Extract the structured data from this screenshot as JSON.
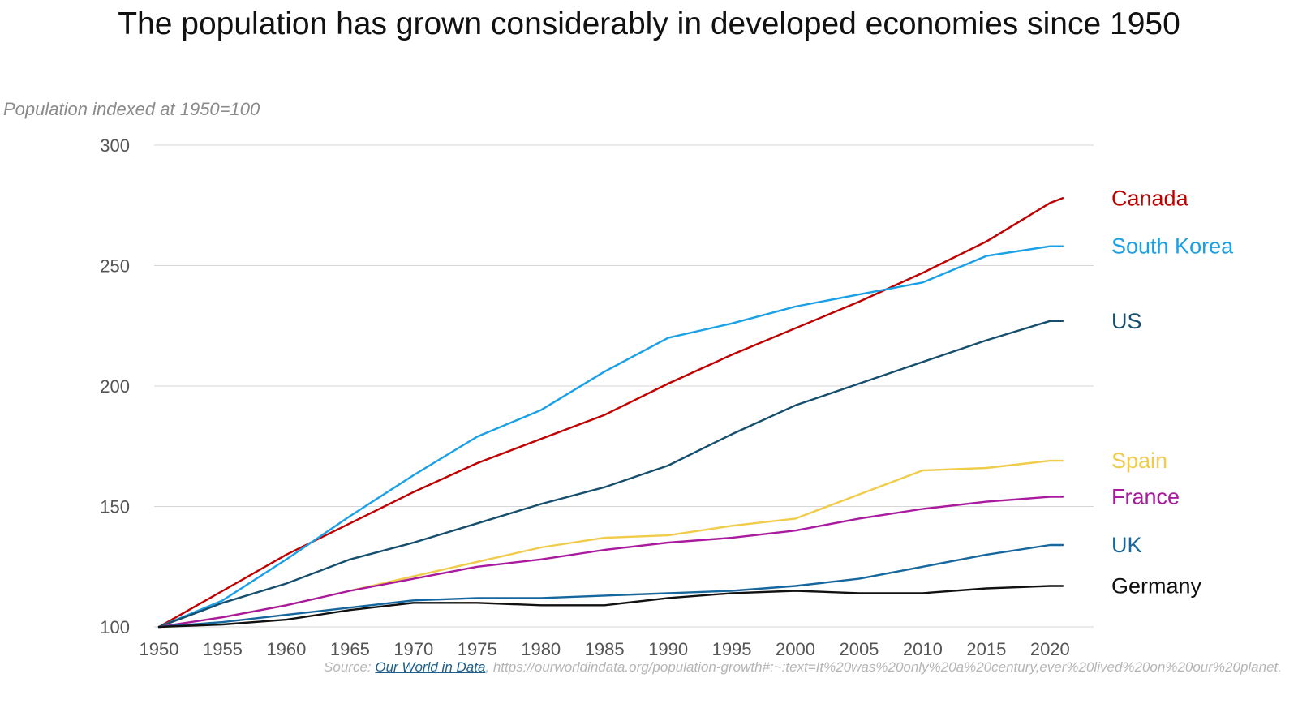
{
  "chart_data": {
    "type": "line",
    "title": "The population has grown considerably in developed economies since 1950",
    "ylabel": "Population indexed at 1950=100",
    "xlabel": "",
    "xlim": [
      1950,
      2021
    ],
    "ylim": [
      100,
      300
    ],
    "x_ticks": [
      "1950",
      "1955",
      "1960",
      "1965",
      "1970",
      "1975",
      "1980",
      "1985",
      "1990",
      "1995",
      "2000",
      "2005",
      "2010",
      "2015",
      "2020"
    ],
    "y_ticks": [
      "100",
      "150",
      "200",
      "250",
      "300"
    ],
    "grid": "horizontal",
    "legend": "inline labels at right end of lines",
    "series": [
      {
        "name": "Canada",
        "color": "#c00000",
        "points": [
          [
            1950,
            100
          ],
          [
            1955,
            115
          ],
          [
            1960,
            130
          ],
          [
            1965,
            143
          ],
          [
            1970,
            156
          ],
          [
            1975,
            168
          ],
          [
            1980,
            178
          ],
          [
            1985,
            188
          ],
          [
            1990,
            201
          ],
          [
            1995,
            213
          ],
          [
            2000,
            224
          ],
          [
            2005,
            235
          ],
          [
            2010,
            247
          ],
          [
            2015,
            260
          ],
          [
            2020,
            276
          ],
          [
            2021,
            278
          ]
        ]
      },
      {
        "name": "South Korea",
        "color": "#1aa0e6",
        "points": [
          [
            1950,
            100
          ],
          [
            1955,
            111
          ],
          [
            1960,
            128
          ],
          [
            1965,
            146
          ],
          [
            1970,
            163
          ],
          [
            1975,
            179
          ],
          [
            1980,
            190
          ],
          [
            1985,
            206
          ],
          [
            1990,
            220
          ],
          [
            1995,
            226
          ],
          [
            2000,
            233
          ],
          [
            2005,
            238
          ],
          [
            2010,
            243
          ],
          [
            2015,
            254
          ],
          [
            2020,
            258
          ],
          [
            2021,
            258
          ]
        ]
      },
      {
        "name": "US",
        "color": "#164f6e",
        "points": [
          [
            1950,
            100
          ],
          [
            1955,
            110
          ],
          [
            1960,
            118
          ],
          [
            1965,
            128
          ],
          [
            1970,
            135
          ],
          [
            1975,
            143
          ],
          [
            1980,
            151
          ],
          [
            1985,
            158
          ],
          [
            1990,
            167
          ],
          [
            1995,
            180
          ],
          [
            2000,
            192
          ],
          [
            2005,
            201
          ],
          [
            2010,
            210
          ],
          [
            2015,
            219
          ],
          [
            2020,
            227
          ],
          [
            2021,
            227
          ]
        ]
      },
      {
        "name": "Spain",
        "color": "#f0cc4a",
        "points": [
          [
            1950,
            100
          ],
          [
            1955,
            104
          ],
          [
            1960,
            109
          ],
          [
            1965,
            115
          ],
          [
            1970,
            121
          ],
          [
            1975,
            127
          ],
          [
            1980,
            133
          ],
          [
            1985,
            137
          ],
          [
            1990,
            138
          ],
          [
            1995,
            142
          ],
          [
            2000,
            145
          ],
          [
            2005,
            155
          ],
          [
            2010,
            165
          ],
          [
            2015,
            166
          ],
          [
            2020,
            169
          ],
          [
            2021,
            169
          ]
        ]
      },
      {
        "name": "France",
        "color": "#a91a9f",
        "points": [
          [
            1950,
            100
          ],
          [
            1955,
            104
          ],
          [
            1960,
            109
          ],
          [
            1965,
            115
          ],
          [
            1970,
            120
          ],
          [
            1975,
            125
          ],
          [
            1980,
            128
          ],
          [
            1985,
            132
          ],
          [
            1990,
            135
          ],
          [
            1995,
            137
          ],
          [
            2000,
            140
          ],
          [
            2005,
            145
          ],
          [
            2010,
            149
          ],
          [
            2015,
            152
          ],
          [
            2020,
            154
          ],
          [
            2021,
            154
          ]
        ]
      },
      {
        "name": "UK",
        "color": "#16679e",
        "points": [
          [
            1950,
            100
          ],
          [
            1955,
            102
          ],
          [
            1960,
            105
          ],
          [
            1965,
            108
          ],
          [
            1970,
            111
          ],
          [
            1975,
            112
          ],
          [
            1980,
            112
          ],
          [
            1985,
            113
          ],
          [
            1990,
            114
          ],
          [
            1995,
            115
          ],
          [
            2000,
            117
          ],
          [
            2005,
            120
          ],
          [
            2010,
            125
          ],
          [
            2015,
            130
          ],
          [
            2020,
            134
          ],
          [
            2021,
            134
          ]
        ]
      },
      {
        "name": "Germany",
        "color": "#111111",
        "points": [
          [
            1950,
            100
          ],
          [
            1955,
            101
          ],
          [
            1960,
            103
          ],
          [
            1965,
            107
          ],
          [
            1970,
            110
          ],
          [
            1975,
            110
          ],
          [
            1980,
            109
          ],
          [
            1985,
            109
          ],
          [
            1990,
            112
          ],
          [
            1995,
            114
          ],
          [
            2000,
            115
          ],
          [
            2005,
            114
          ],
          [
            2010,
            114
          ],
          [
            2015,
            116
          ],
          [
            2020,
            117
          ],
          [
            2021,
            117
          ]
        ]
      }
    ]
  },
  "source": {
    "prefix": "Source: ",
    "link_text": "Our World in Data",
    "suffix": ", https://ourworldindata.org/population-growth#:~:text=It%20was%20only%20a%20century,ever%20lived%20on%20our%20planet."
  },
  "colors": {
    "grid": "#d7d7d7",
    "axis_text": "#555555",
    "subtitle": "#8a8a8a",
    "source": "#b5b5b5",
    "link": "#1d5f8a"
  }
}
